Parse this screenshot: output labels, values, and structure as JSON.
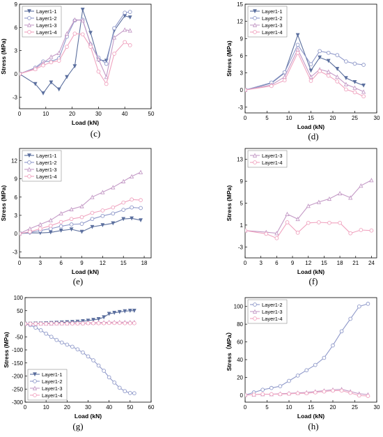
{
  "figure": {
    "background": "#ffffff"
  },
  "styles": {
    "Layer1-1": {
      "color": "#5b6f9e",
      "marker": "triangle-down"
    },
    "Layer1-2": {
      "color": "#8e98c9",
      "marker": "circle"
    },
    "Layer1-3": {
      "color": "#c49ac6",
      "marker": "triangle-up"
    },
    "Layer1-4": {
      "color": "#f0a3bf",
      "marker": "circle"
    }
  },
  "chart_data": [
    {
      "panel": "(c)",
      "type": "line",
      "xlabel": "Load (kN)",
      "ylabel": "Stress (MPa)",
      "xlim": [
        0,
        50
      ],
      "ylim": [
        -4.5,
        9
      ],
      "xticks": [
        0,
        10,
        20,
        30,
        40,
        50
      ],
      "yticks": [
        -3,
        0,
        3,
        6,
        9
      ],
      "series": [
        {
          "name": "Layer1-1",
          "x": [
            0,
            6,
            9,
            12,
            15,
            18,
            21,
            24,
            27,
            30,
            33,
            36,
            40,
            42
          ],
          "y": [
            0,
            -1.3,
            -2.5,
            -1.1,
            -2.0,
            -0.4,
            1.0,
            8.3,
            5.3,
            1.8,
            1.7,
            5.6,
            7.5,
            7.3
          ]
        },
        {
          "name": "Layer1-2",
          "x": [
            0,
            6,
            9,
            12,
            15,
            18,
            21,
            24,
            27,
            30,
            33,
            36,
            40,
            42
          ],
          "y": [
            0,
            0.8,
            1.6,
            1.6,
            2.0,
            4.8,
            6.9,
            7.0,
            3.8,
            2.1,
            1.3,
            5.9,
            7.9,
            8.0
          ]
        },
        {
          "name": "Layer1-3",
          "x": [
            0,
            6,
            9,
            12,
            15,
            18,
            21,
            24,
            27,
            30,
            33,
            36,
            40,
            42
          ],
          "y": [
            0,
            0.7,
            1.4,
            2.2,
            2.7,
            5.2,
            7.0,
            6.9,
            3.9,
            1.9,
            -0.4,
            4.7,
            5.7,
            5.6
          ]
        },
        {
          "name": "Layer1-4",
          "x": [
            0,
            6,
            9,
            12,
            15,
            18,
            21,
            24,
            27,
            30,
            33,
            36,
            40,
            42
          ],
          "y": [
            0,
            0.6,
            1.1,
            1.5,
            1.7,
            3.5,
            5.2,
            5.1,
            3.5,
            0.3,
            -1.3,
            2.6,
            4.1,
            3.7
          ]
        }
      ]
    },
    {
      "panel": "(d)",
      "type": "line",
      "xlabel": "Load (kN)",
      "ylabel": "Stress (MPa)",
      "xlim": [
        0,
        30
      ],
      "ylim": [
        -4,
        15
      ],
      "xticks": [
        0,
        5,
        10,
        15,
        20,
        25,
        30
      ],
      "yticks": [
        -3,
        0,
        3,
        6,
        9,
        12,
        15
      ],
      "series": [
        {
          "name": "Layer1-1",
          "x": [
            0,
            6,
            9,
            12,
            15,
            17,
            19,
            21,
            23,
            25,
            27
          ],
          "y": [
            0,
            1.2,
            3.0,
            9.6,
            3.4,
            5.7,
            5.1,
            3.7,
            2.1,
            1.4,
            0.8
          ]
        },
        {
          "name": "Layer1-2",
          "x": [
            0,
            6,
            9,
            12,
            15,
            17,
            19,
            21,
            23,
            25,
            27
          ],
          "y": [
            0,
            1.3,
            3.1,
            7.9,
            4.5,
            6.8,
            6.5,
            6.1,
            5.0,
            4.6,
            4.4
          ]
        },
        {
          "name": "Layer1-3",
          "x": [
            0,
            6,
            9,
            12,
            15,
            17,
            19,
            21,
            23,
            25,
            27
          ],
          "y": [
            0,
            0.9,
            2.3,
            7.1,
            2.3,
            3.6,
            3.2,
            2.3,
            1.0,
            0.4,
            -0.3
          ]
        },
        {
          "name": "Layer1-4",
          "x": [
            0,
            6,
            9,
            12,
            15,
            17,
            19,
            21,
            23,
            25,
            27
          ],
          "y": [
            0,
            0.7,
            1.7,
            6.5,
            1.6,
            3.3,
            2.5,
            1.5,
            0.1,
            -0.4,
            -1.1
          ]
        }
      ]
    },
    {
      "panel": "(e)",
      "type": "line",
      "xlabel": "Load (kN)",
      "ylabel": "Stress (MPa)",
      "xlim": [
        0,
        19
      ],
      "ylim": [
        -4,
        14
      ],
      "xticks": [
        0,
        3,
        6,
        9,
        12,
        15,
        18
      ],
      "yticks": [
        -3,
        0,
        3,
        6,
        9,
        12
      ],
      "series": [
        {
          "name": "Layer1-1",
          "x": [
            0,
            1.5,
            3,
            4.5,
            6,
            7.5,
            9,
            10.5,
            12,
            13.5,
            15,
            16.2,
            17.5
          ],
          "y": [
            0,
            0.1,
            0.1,
            0.2,
            0.5,
            0.7,
            0.3,
            1.1,
            1.4,
            1.7,
            2.4,
            2.5,
            2.2
          ]
        },
        {
          "name": "Layer1-2",
          "x": [
            0,
            1.5,
            3,
            4.5,
            6,
            7.5,
            9,
            10.5,
            12,
            13.5,
            15,
            16.2,
            17.5
          ],
          "y": [
            0,
            0.2,
            0.5,
            0.8,
            1.2,
            1.5,
            1.6,
            2.4,
            2.9,
            3.3,
            3.9,
            4.3,
            4.2
          ]
        },
        {
          "name": "Layer1-3",
          "x": [
            0,
            1.5,
            3,
            4.5,
            6,
            7.5,
            9,
            10.5,
            12,
            13.5,
            15,
            16.2,
            17.5
          ],
          "y": [
            0,
            0.8,
            1.5,
            2.2,
            3.3,
            4.0,
            4.5,
            6.0,
            6.8,
            7.6,
            8.6,
            9.4,
            10.1
          ]
        },
        {
          "name": "Layer1-4",
          "x": [
            0,
            1.5,
            3,
            4.5,
            6,
            7.5,
            9,
            10.5,
            12,
            13.5,
            15,
            16.2,
            17.5
          ],
          "y": [
            0,
            0.3,
            0.8,
            1.3,
            1.9,
            2.4,
            2.7,
            3.4,
            3.8,
            4.3,
            5.1,
            5.6,
            5.5
          ]
        }
      ]
    },
    {
      "panel": "(f)",
      "type": "line",
      "xlabel": "Load (kN)",
      "ylabel": "Stress (MPa)",
      "xlim": [
        0,
        25
      ],
      "ylim": [
        -5,
        15
      ],
      "xticks": [
        0,
        3,
        6,
        9,
        12,
        15,
        18,
        21,
        24
      ],
      "yticks": [
        -3,
        1,
        5,
        9,
        13
      ],
      "series": [
        {
          "name": "Layer1-3",
          "x": [
            0,
            4,
            6,
            8,
            10,
            12,
            14,
            16,
            18,
            20,
            22,
            24
          ],
          "y": [
            0,
            -0.3,
            -0.5,
            3.0,
            2.1,
            4.5,
            5.2,
            5.8,
            6.8,
            6.0,
            8.2,
            9.2
          ]
        },
        {
          "name": "Layer1-4",
          "x": [
            0,
            4,
            6,
            8,
            10,
            12,
            14,
            16,
            18,
            20,
            22,
            24
          ],
          "y": [
            0,
            -0.6,
            -1.4,
            1.5,
            -0.4,
            1.4,
            1.5,
            1.4,
            1.4,
            -0.5,
            0.1,
            0.0
          ]
        }
      ]
    },
    {
      "panel": "(g)",
      "type": "line",
      "xlabel": "Load (kN)",
      "ylabel": "Stress (MPa)",
      "xlim": [
        0,
        60
      ],
      "ylim": [
        -300,
        100
      ],
      "xticks": [
        0,
        10,
        20,
        30,
        40,
        50,
        60
      ],
      "yticks": [
        -300,
        -250,
        -200,
        -150,
        -100,
        -50,
        0,
        50,
        100
      ],
      "series": [
        {
          "name": "Layer1-1",
          "x": [
            0,
            2.5,
            5,
            7.5,
            10,
            12.5,
            15,
            17.5,
            20,
            22.5,
            25,
            27.5,
            30,
            32.5,
            35,
            37.5,
            40,
            42.5,
            45,
            47.5,
            50,
            52
          ],
          "y": [
            0,
            0,
            1,
            1,
            2,
            3,
            4,
            5,
            6,
            7,
            8,
            10,
            12,
            15,
            18,
            25,
            38,
            42,
            45,
            48,
            50,
            50
          ]
        },
        {
          "name": "Layer1-2",
          "x": [
            0,
            2.5,
            5,
            7.5,
            10,
            12.5,
            15,
            17.5,
            20,
            22.5,
            25,
            27.5,
            30,
            32.5,
            35,
            37.5,
            40,
            42.5,
            45,
            47.5,
            50,
            52
          ],
          "y": [
            0,
            -5,
            -15,
            -25,
            -38,
            -50,
            -62,
            -72,
            -80,
            -88,
            -98,
            -110,
            -125,
            -140,
            -160,
            -180,
            -205,
            -225,
            -245,
            -258,
            -265,
            -266
          ]
        },
        {
          "name": "Layer1-3",
          "x": [
            0,
            2.5,
            5,
            7.5,
            10,
            12.5,
            15,
            17.5,
            20,
            22.5,
            25,
            27.5,
            30,
            32.5,
            35,
            37.5,
            40,
            42.5,
            45,
            47.5,
            50,
            52
          ],
          "y": [
            0,
            0,
            0,
            1,
            1,
            1,
            2,
            2,
            2,
            3,
            3,
            3,
            4,
            4,
            5,
            5,
            6,
            6,
            6,
            6,
            6,
            6
          ]
        },
        {
          "name": "Layer1-4",
          "x": [
            0,
            2.5,
            5,
            7.5,
            10,
            12.5,
            15,
            17.5,
            20,
            22.5,
            25,
            27.5,
            30,
            32.5,
            35,
            37.5,
            40,
            42.5,
            45,
            47.5,
            50,
            52
          ],
          "y": [
            0,
            0,
            0,
            0,
            0,
            1,
            1,
            1,
            1,
            1,
            1,
            1,
            2,
            2,
            2,
            2,
            3,
            3,
            3,
            2,
            2,
            2
          ]
        }
      ]
    },
    {
      "panel": "(h)",
      "type": "line",
      "xlabel": "Load (kN)",
      "ylabel": "Stress（MPa）",
      "xlim": [
        0,
        30
      ],
      "ylim": [
        -8,
        110
      ],
      "xticks": [
        0,
        5,
        10,
        15,
        20,
        25,
        30
      ],
      "yticks": [
        0,
        20,
        40,
        60,
        80,
        100
      ],
      "series": [
        {
          "name": "Layer1-2",
          "x": [
            0,
            2,
            4,
            6,
            8,
            10,
            12,
            14,
            16,
            18,
            20,
            22,
            24,
            26,
            28
          ],
          "y": [
            0,
            3,
            6,
            8,
            10,
            16,
            22,
            28,
            34,
            42,
            56,
            72,
            86,
            100,
            103
          ]
        },
        {
          "name": "Layer1-3",
          "x": [
            0,
            2,
            4,
            6,
            8,
            10,
            12,
            14,
            16,
            18,
            20,
            22,
            24,
            26,
            28
          ],
          "y": [
            0,
            0.5,
            1,
            1,
            1.5,
            2,
            2.5,
            3,
            4,
            5,
            6,
            6.5,
            4,
            1.5,
            0.5
          ]
        },
        {
          "name": "Layer1-4",
          "x": [
            0,
            2,
            4,
            6,
            8,
            10,
            12,
            14,
            16,
            18,
            20,
            22,
            24,
            26,
            28
          ],
          "y": [
            0,
            0.5,
            1,
            1,
            1,
            1.5,
            2,
            2,
            3,
            4,
            5,
            5,
            2.5,
            -0.5,
            -1
          ]
        }
      ]
    }
  ]
}
